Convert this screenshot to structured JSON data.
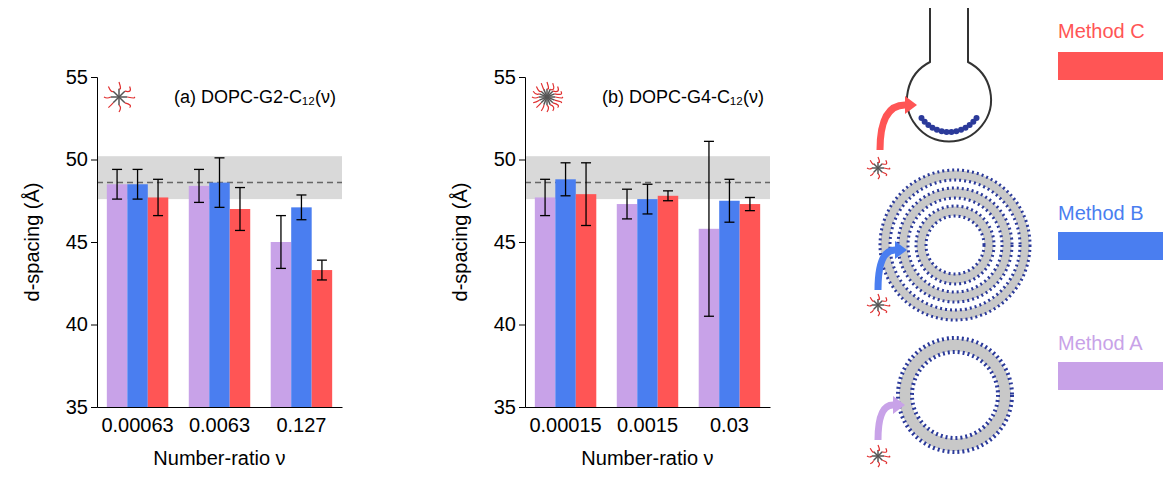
{
  "chart_data": [
    {
      "type": "bar",
      "title": "(a) DOPC-G2-C₁₂(ν)",
      "xlabel": "Number-ratio ν",
      "ylabel": "d-spacing (Å)",
      "categories": [
        "0.00063",
        "0.0063",
        "0.127"
      ],
      "series": [
        {
          "name": "Method A",
          "color": "#c8a2e8",
          "values": [
            48.5,
            48.4,
            45.0
          ],
          "errors": [
            0.9,
            1.0,
            1.6
          ]
        },
        {
          "name": "Method B",
          "color": "#4a7ef0",
          "values": [
            48.5,
            48.6,
            47.1
          ],
          "errors": [
            0.9,
            1.5,
            0.75
          ]
        },
        {
          "name": "Method C",
          "color": "#ff5555",
          "values": [
            47.7,
            47.0,
            43.3
          ],
          "errors": [
            1.1,
            1.3,
            0.6
          ]
        }
      ],
      "ylim": [
        35,
        55
      ],
      "yticks": [
        35,
        40,
        45,
        50,
        55
      ],
      "reference_line": 48.6,
      "reference_band": [
        47.6,
        50.2
      ]
    },
    {
      "type": "bar",
      "title": "(b) DOPC-G4-C₁₂(ν)",
      "xlabel": "Number-ratio ν",
      "ylabel": "d-spacing (Å)",
      "categories": [
        "0.00015",
        "0.0015",
        "0.03"
      ],
      "series": [
        {
          "name": "Method A",
          "color": "#c8a2e8",
          "values": [
            47.7,
            47.3,
            45.8
          ],
          "errors": [
            1.1,
            0.9,
            5.3
          ]
        },
        {
          "name": "Method B",
          "color": "#4a7ef0",
          "values": [
            48.8,
            47.6,
            47.5
          ],
          "errors": [
            1.0,
            0.9,
            1.3
          ]
        },
        {
          "name": "Method C",
          "color": "#ff5555",
          "values": [
            47.9,
            47.8,
            47.3
          ],
          "errors": [
            1.9,
            0.3,
            0.4
          ]
        }
      ],
      "ylim": [
        35,
        55
      ],
      "yticks": [
        35,
        40,
        45,
        50,
        55
      ],
      "reference_line": 48.6,
      "reference_band": [
        47.6,
        50.2
      ],
      "legend": "right"
    }
  ]
}
